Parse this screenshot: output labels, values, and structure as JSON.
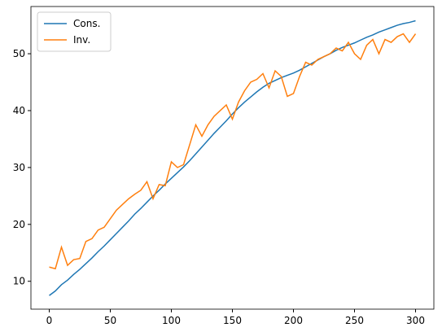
{
  "chart_data": {
    "type": "line",
    "x": [
      0,
      5,
      10,
      15,
      20,
      25,
      30,
      35,
      40,
      45,
      50,
      55,
      60,
      65,
      70,
      75,
      80,
      85,
      90,
      95,
      100,
      105,
      110,
      115,
      120,
      125,
      130,
      135,
      140,
      145,
      150,
      155,
      160,
      165,
      170,
      175,
      180,
      185,
      190,
      195,
      200,
      205,
      210,
      215,
      220,
      225,
      230,
      235,
      240,
      245,
      250,
      255,
      260,
      265,
      270,
      275,
      280,
      285,
      290,
      295,
      300
    ],
    "series": [
      {
        "name": "Cons.",
        "color": "#1f77b4",
        "values": [
          7.5,
          8.3,
          9.4,
          10.2,
          11.2,
          12.1,
          13.1,
          14.1,
          15.2,
          16.2,
          17.3,
          18.4,
          19.5,
          20.6,
          21.8,
          22.8,
          23.9,
          25.0,
          26.0,
          27.1,
          28.1,
          29.1,
          30.1,
          31.2,
          32.4,
          33.6,
          34.8,
          36.0,
          37.1,
          38.2,
          39.4,
          40.5,
          41.5,
          42.4,
          43.3,
          44.1,
          44.8,
          45.3,
          45.8,
          46.2,
          46.6,
          47.1,
          47.7,
          48.3,
          48.9,
          49.5,
          50.0,
          50.6,
          51.1,
          51.5,
          51.9,
          52.4,
          52.9,
          53.3,
          53.8,
          54.2,
          54.6,
          55.0,
          55.3,
          55.5,
          55.8
        ]
      },
      {
        "name": "Inv.",
        "color": "#ff7f0e",
        "values": [
          12.5,
          12.2,
          16,
          12.8,
          13.8,
          14,
          17,
          17.5,
          19,
          19.5,
          21,
          22.5,
          23.5,
          24.5,
          25.3,
          26,
          27.5,
          24.5,
          27,
          26.8,
          31,
          30,
          30.5,
          34,
          37.5,
          35.5,
          37.5,
          39,
          40,
          41,
          38.5,
          41.5,
          43.5,
          45,
          45.5,
          46.5,
          44,
          47,
          46,
          42.5,
          43,
          46,
          48.5,
          48,
          49,
          49.5,
          50,
          51,
          50.5,
          52,
          50,
          49,
          51.5,
          52.5,
          50,
          52.5,
          52,
          53,
          53.5,
          52,
          53.5
        ]
      }
    ],
    "xlim": [
      -15,
      315
    ],
    "ylim": [
      5.1,
      58.3
    ],
    "xticks": [
      0,
      50,
      100,
      150,
      200,
      250,
      300
    ],
    "yticks": [
      10,
      20,
      30,
      40,
      50
    ],
    "legend": "upper left"
  }
}
